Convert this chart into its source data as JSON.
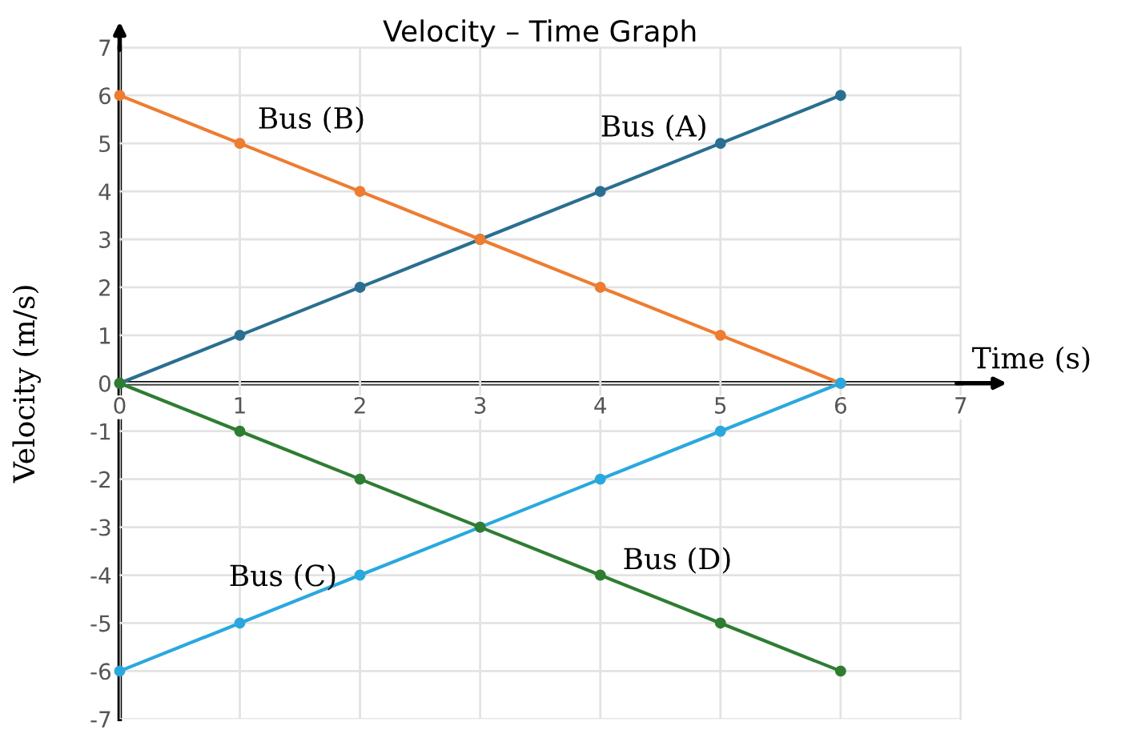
{
  "chart_data": {
    "type": "line",
    "title": "Velocity – Time Graph",
    "xlabel": "Time (s)",
    "ylabel": "Velocity (m/s)",
    "x": [
      0,
      1,
      2,
      3,
      4,
      5,
      6
    ],
    "series": [
      {
        "name": "Bus (A)",
        "color": "#2a6f91",
        "values": [
          0,
          1,
          2,
          3,
          4,
          5,
          6
        ]
      },
      {
        "name": "Bus (B)",
        "color": "#ed7d31",
        "values": [
          6,
          5,
          4,
          3,
          2,
          1,
          0
        ]
      },
      {
        "name": "Bus (C)",
        "color": "#2aa8de",
        "values": [
          -6,
          -5,
          -4,
          -3,
          -2,
          -1,
          0
        ]
      },
      {
        "name": "Bus (D)",
        "color": "#2e7d32",
        "values": [
          0,
          -1,
          -2,
          -3,
          -4,
          -5,
          -6
        ]
      }
    ],
    "xlim": [
      0,
      7
    ],
    "xticks": [
      0,
      1,
      2,
      3,
      4,
      5,
      6,
      7
    ],
    "ylim": [
      -7,
      7
    ],
    "yticks": [
      -7,
      -6,
      -5,
      -4,
      -3,
      -2,
      -1,
      0,
      1,
      2,
      3,
      4,
      5,
      6,
      7
    ],
    "grid": true,
    "marker": "circle",
    "line_style": "solid"
  }
}
